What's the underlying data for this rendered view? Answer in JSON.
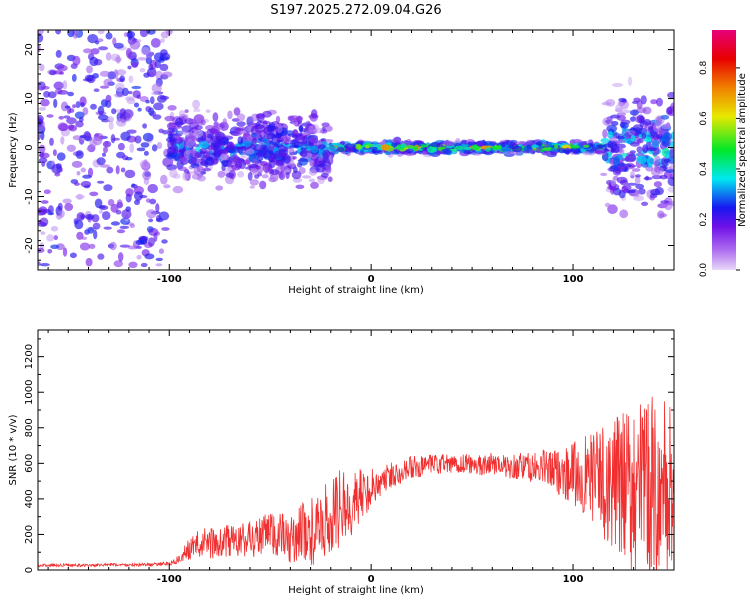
{
  "page": {
    "title": "S197.2025.272.09.04.G26"
  },
  "chart_data": [
    {
      "type": "heatmap",
      "title": "S197.2025.272.09.04.G26",
      "xlabel": "Height of straight line (km)",
      "ylabel": "Frequency (Hz)",
      "xlim": [
        -165,
        150
      ],
      "ylim": [
        -25,
        24
      ],
      "xticks": [
        -100,
        0,
        100
      ],
      "yticks": [
        -20,
        -10,
        0,
        10,
        20
      ],
      "colorbar": {
        "label": "Normalized spectral amplitude",
        "range": [
          0.0,
          0.95
        ],
        "ticks": [
          "0.0",
          "0.2",
          "0.4",
          "0.6",
          "0.8"
        ],
        "tick_values": [
          0.0,
          0.2,
          0.4,
          0.6,
          0.8
        ],
        "colormap": [
          "#e8d8f8",
          "#7010e8",
          "#1818f0",
          "#00e8f0",
          "#00e828",
          "#e8e800",
          "#f08000",
          "#e80000",
          "#e8007a"
        ]
      },
      "regions": [
        {
          "x_range": [
            -165,
            -100
          ],
          "character": "scattered purple noise across full frequency band",
          "freq_spread": 24,
          "mean_amplitude": 0.15
        },
        {
          "x_range": [
            -100,
            -20
          ],
          "character": "dense blue/purple cluster around 0 Hz",
          "freq_spread": 7,
          "mean_amplitude": 0.22
        },
        {
          "x_range": [
            -20,
            115
          ],
          "character": "narrow line near 0 Hz, cyan/yellow/red",
          "freq_spread": 1.2,
          "mean_amplitude": 0.6
        },
        {
          "x_range": [
            115,
            150
          ],
          "character": "spreading blue/purple energy",
          "freq_spread": 12,
          "mean_amplitude": 0.25
        }
      ]
    },
    {
      "type": "line",
      "xlabel": "Height of straight line (km)",
      "ylabel": "SNR (10 * v/v)",
      "xlim": [
        -165,
        150
      ],
      "ylim": [
        0,
        1350
      ],
      "xticks": [
        -100,
        0,
        100
      ],
      "yticks": [
        0,
        200,
        400,
        600,
        800,
        1000,
        1200
      ],
      "color": "#f03030",
      "x": [
        -165,
        -150,
        -140,
        -130,
        -120,
        -110,
        -100,
        -95,
        -90,
        -85,
        -80,
        -75,
        -70,
        -65,
        -60,
        -55,
        -50,
        -45,
        -40,
        -35,
        -30,
        -25,
        -20,
        -15,
        -10,
        -5,
        0,
        5,
        10,
        15,
        20,
        25,
        30,
        35,
        40,
        45,
        50,
        55,
        60,
        65,
        70,
        75,
        80,
        85,
        90,
        95,
        100,
        105,
        110,
        115,
        120,
        125,
        130,
        135,
        140,
        145,
        150
      ],
      "values": [
        25,
        28,
        25,
        30,
        28,
        30,
        35,
        60,
        120,
        150,
        155,
        140,
        170,
        160,
        180,
        185,
        200,
        195,
        160,
        220,
        210,
        230,
        300,
        350,
        380,
        420,
        460,
        500,
        530,
        560,
        575,
        580,
        590,
        595,
        590,
        600,
        595,
        590,
        600,
        590,
        580,
        585,
        570,
        580,
        560,
        550,
        540,
        530,
        520,
        500,
        480,
        470,
        460,
        450,
        440,
        430,
        420
      ],
      "noise_amplitude": [
        8,
        8,
        8,
        8,
        8,
        8,
        12,
        30,
        60,
        80,
        90,
        90,
        100,
        100,
        110,
        120,
        140,
        140,
        130,
        170,
        190,
        210,
        230,
        220,
        200,
        150,
        120,
        90,
        80,
        70,
        70,
        60,
        60,
        60,
        60,
        60,
        60,
        60,
        60,
        60,
        70,
        80,
        90,
        100,
        120,
        140,
        180,
        220,
        260,
        320,
        380,
        420,
        480,
        520,
        540,
        560,
        560
      ]
    }
  ]
}
